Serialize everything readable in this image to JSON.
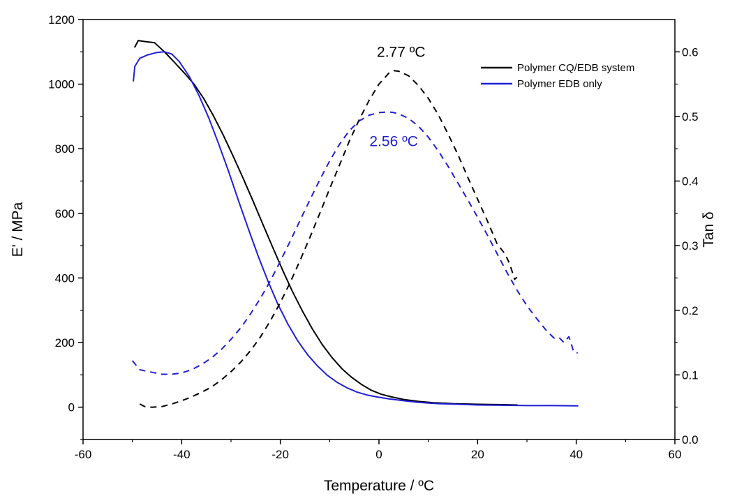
{
  "chart_data": {
    "type": "line",
    "xlabel": "Temperature / ºC",
    "ylabel": "E' / MPa",
    "y2label": "Tan δ",
    "xlim": [
      -60,
      60
    ],
    "ylim": [
      -100,
      1200
    ],
    "y2lim": [
      0.0,
      0.65
    ],
    "xticks": [
      -60,
      -40,
      -20,
      0,
      20,
      40,
      60
    ],
    "yticks": [
      0,
      200,
      400,
      600,
      800,
      1000,
      1200
    ],
    "y2ticks": [
      0.0,
      0.1,
      0.2,
      0.3,
      0.4,
      0.5,
      0.6
    ],
    "grid": false,
    "legend_position": "top-right",
    "colors": {
      "black": "#000000",
      "blue": "#1f1fd6"
    },
    "series": [
      {
        "name": "Polymer CQ/EDB system",
        "axis": "left",
        "style": "solid",
        "color": "black",
        "x": [
          -49.5,
          -48.8,
          -47.5,
          -45.5,
          -43.5,
          -41.5,
          -39.5,
          -37.5,
          -35.5,
          -33.5,
          -31.5,
          -29.5,
          -27.5,
          -25.5,
          -23.5,
          -21.5,
          -19.5,
          -17.5,
          -15.5,
          -13.5,
          -11.5,
          -9.5,
          -7.5,
          -5.5,
          -3.5,
          -1.5,
          0.5,
          2.5,
          5.0,
          8.0,
          11.0,
          15.0,
          20.0,
          25.0,
          28.0
        ],
        "y": [
          1115,
          1135,
          1132,
          1128,
          1100,
          1068,
          1035,
          1000,
          955,
          900,
          840,
          775,
          707,
          637,
          565,
          493,
          423,
          357,
          297,
          242,
          194,
          153,
          119,
          92,
          70,
          52,
          40,
          32,
          24,
          18,
          14,
          11,
          9,
          8,
          7
        ]
      },
      {
        "name": "Polymer EDB only",
        "axis": "left",
        "style": "solid",
        "color": "blue",
        "x": [
          -49.8,
          -49.5,
          -48.5,
          -47.0,
          -45.0,
          -43.5,
          -42.0,
          -40.5,
          -38.5,
          -36.5,
          -34.5,
          -32.5,
          -30.5,
          -28.5,
          -26.5,
          -24.5,
          -22.5,
          -20.5,
          -18.5,
          -16.5,
          -14.5,
          -12.5,
          -10.5,
          -8.5,
          -6.5,
          -4.5,
          -2.5,
          -0.5,
          2.0,
          5.0,
          8.0,
          12.0,
          16.0,
          20.0,
          25.0,
          30.0,
          35.0,
          40.3
        ],
        "y": [
          1010,
          1055,
          1080,
          1090,
          1098,
          1100,
          1093,
          1070,
          1025,
          965,
          895,
          815,
          730,
          640,
          553,
          468,
          390,
          319,
          258,
          206,
          163,
          128,
          99,
          77,
          60,
          47,
          38,
          32,
          26,
          20,
          15,
          11,
          9,
          7,
          6,
          5,
          5,
          4
        ]
      },
      {
        "name": "Polymer CQ/EDB system tan δ",
        "axis": "right",
        "style": "dashed",
        "color": "black",
        "x": [
          -48.5,
          -47.5,
          -46.0,
          -44.0,
          -42.0,
          -40.0,
          -38.0,
          -36.0,
          -34.0,
          -32.0,
          -30.0,
          -28.0,
          -26.0,
          -24.0,
          -22.0,
          -20.0,
          -18.0,
          -16.0,
          -14.0,
          -12.0,
          -10.0,
          -8.0,
          -6.0,
          -4.0,
          -2.0,
          0.0,
          2.0,
          3.0,
          4.0,
          6.0,
          8.0,
          10.0,
          12.0,
          14.0,
          16.0,
          18.0,
          20.0,
          22.0,
          24.0,
          25.5,
          26.5,
          27.5,
          28.0
        ],
        "y": [
          0.055,
          0.051,
          0.05,
          0.051,
          0.055,
          0.06,
          0.066,
          0.073,
          0.081,
          0.092,
          0.105,
          0.12,
          0.138,
          0.159,
          0.184,
          0.212,
          0.243,
          0.277,
          0.313,
          0.35,
          0.388,
          0.425,
          0.462,
          0.495,
          0.525,
          0.55,
          0.567,
          0.571,
          0.57,
          0.563,
          0.548,
          0.528,
          0.503,
          0.473,
          0.441,
          0.406,
          0.372,
          0.338,
          0.302,
          0.288,
          0.272,
          0.248,
          0.251
        ]
      },
      {
        "name": "Polymer EDB only tan δ",
        "axis": "right",
        "style": "dashed",
        "color": "blue",
        "x": [
          -50.0,
          -48.5,
          -46.0,
          -44.0,
          -42.0,
          -40.0,
          -38.0,
          -36.0,
          -34.0,
          -32.0,
          -30.0,
          -28.0,
          -26.0,
          -24.0,
          -22.0,
          -20.0,
          -18.0,
          -16.0,
          -14.0,
          -12.0,
          -10.0,
          -8.0,
          -6.0,
          -4.0,
          -2.0,
          0.0,
          2.0,
          3.0,
          4.0,
          6.0,
          8.0,
          10.0,
          12.0,
          14.0,
          16.0,
          18.0,
          20.0,
          22.0,
          24.0,
          26.0,
          28.0,
          30.0,
          32.0,
          34.0,
          35.5,
          36.5,
          37.5,
          38.5,
          39.0,
          39.5,
          40.3
        ],
        "y": [
          0.122,
          0.108,
          0.104,
          0.101,
          0.101,
          0.103,
          0.108,
          0.116,
          0.126,
          0.139,
          0.155,
          0.173,
          0.195,
          0.219,
          0.246,
          0.276,
          0.307,
          0.339,
          0.371,
          0.402,
          0.431,
          0.457,
          0.478,
          0.493,
          0.502,
          0.506,
          0.507,
          0.506,
          0.504,
          0.497,
          0.485,
          0.468,
          0.447,
          0.423,
          0.397,
          0.371,
          0.344,
          0.316,
          0.287,
          0.258,
          0.231,
          0.207,
          0.187,
          0.168,
          0.157,
          0.158,
          0.15,
          0.159,
          0.148,
          0.135,
          0.134
        ]
      }
    ],
    "legend": [
      {
        "label": "Polymer CQ/EDB system",
        "color": "black"
      },
      {
        "label": "Polymer EDB only",
        "color": "blue"
      }
    ],
    "annotations": [
      {
        "text": "2.77 ºC",
        "color": "black",
        "x": 4.5,
        "y2": 0.592
      },
      {
        "text": "2.56 ºC",
        "color": "blue",
        "x": 3.0,
        "y2": 0.454
      }
    ]
  }
}
